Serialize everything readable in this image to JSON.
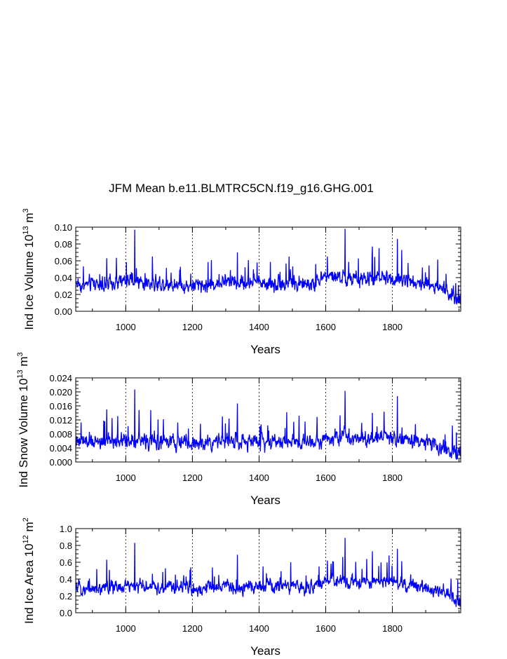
{
  "title": "JFM Mean b.e11.BLMTRC5CN.f19_g16.GHG.001",
  "line_color": "#0000ff",
  "chart_data": [
    {
      "type": "line",
      "title": "JFM Mean b.e11.BLMTRC5CN.f19_g16.GHG.001",
      "xlabel": "Years",
      "ylabel_main": "Ind Ice Volume 10",
      "ylabel_exp": "13",
      "ylabel_unit": " m",
      "ylabel_unit_exp": "3",
      "xlim": [
        850,
        2005
      ],
      "ylim": [
        0.0,
        0.1
      ],
      "yticks": [
        "0.00",
        "0.02",
        "0.04",
        "0.06",
        "0.08",
        "0.10"
      ],
      "xticks": [
        "1000",
        "1200",
        "1400",
        "1600",
        "1800"
      ],
      "grid_x": [
        1000,
        1200,
        1400,
        1600,
        1800
      ],
      "series": [
        {
          "knots": [
            [
              850,
              0.035
            ],
            [
              870,
              0.03
            ],
            [
              900,
              0.034
            ],
            [
              950,
              0.031
            ],
            [
              1000,
              0.036
            ],
            [
              1050,
              0.034
            ],
            [
              1100,
              0.033
            ],
            [
              1150,
              0.032
            ],
            [
              1200,
              0.029
            ],
            [
              1250,
              0.031
            ],
            [
              1300,
              0.036
            ],
            [
              1350,
              0.033
            ],
            [
              1400,
              0.035
            ],
            [
              1450,
              0.033
            ],
            [
              1500,
              0.034
            ],
            [
              1550,
              0.031
            ],
            [
              1600,
              0.042
            ],
            [
              1650,
              0.04
            ],
            [
              1700,
              0.037
            ],
            [
              1750,
              0.039
            ],
            [
              1800,
              0.04
            ],
            [
              1850,
              0.036
            ],
            [
              1900,
              0.033
            ],
            [
              1950,
              0.027
            ],
            [
              1975,
              0.02
            ],
            [
              2005,
              0.012
            ]
          ],
          "noise": 0.0075,
          "min": 0.008,
          "spikes": [
            [
              1027,
              0.097
            ],
            [
              1658,
              0.098
            ],
            [
              1815,
              0.086
            ],
            [
              1760,
              0.075
            ],
            [
              1740,
              0.077
            ],
            [
              1335,
              0.07
            ],
            [
              1490,
              0.065
            ],
            [
              943,
              0.063
            ],
            [
              1605,
              0.065
            ]
          ]
        }
      ]
    },
    {
      "type": "line",
      "xlabel": "Years",
      "ylabel_main": "Ind Snow Volume 10",
      "ylabel_exp": "13",
      "ylabel_unit": " m",
      "ylabel_unit_exp": "3",
      "xlim": [
        850,
        2005
      ],
      "ylim": [
        0.0,
        0.024
      ],
      "yticks": [
        "0.000",
        "0.004",
        "0.008",
        "0.012",
        "0.016",
        "0.020",
        "0.024"
      ],
      "xticks": [
        "1000",
        "1200",
        "1400",
        "1600",
        "1800"
      ],
      "grid_x": [
        1000,
        1200,
        1400,
        1600,
        1800
      ],
      "series": [
        {
          "knots": [
            [
              850,
              0.0055
            ],
            [
              900,
              0.0058
            ],
            [
              950,
              0.006
            ],
            [
              1000,
              0.0063
            ],
            [
              1050,
              0.006
            ],
            [
              1100,
              0.0057
            ],
            [
              1150,
              0.0055
            ],
            [
              1200,
              0.0052
            ],
            [
              1250,
              0.0056
            ],
            [
              1300,
              0.006
            ],
            [
              1350,
              0.0058
            ],
            [
              1400,
              0.006
            ],
            [
              1450,
              0.0058
            ],
            [
              1500,
              0.0062
            ],
            [
              1550,
              0.0058
            ],
            [
              1600,
              0.007
            ],
            [
              1650,
              0.0072
            ],
            [
              1700,
              0.0068
            ],
            [
              1750,
              0.007
            ],
            [
              1800,
              0.0072
            ],
            [
              1850,
              0.0062
            ],
            [
              1900,
              0.0055
            ],
            [
              1950,
              0.0045
            ],
            [
              1975,
              0.0032
            ],
            [
              2005,
              0.002
            ]
          ],
          "noise": 0.0018,
          "min": 0.0008,
          "spikes": [
            [
              1027,
              0.0207
            ],
            [
              1658,
              0.0203
            ],
            [
              1815,
              0.0188
            ],
            [
              1335,
              0.0167
            ],
            [
              943,
              0.015
            ],
            [
              1075,
              0.0148
            ],
            [
              1740,
              0.014
            ],
            [
              1290,
              0.013
            ],
            [
              1520,
              0.0132
            ]
          ]
        }
      ]
    },
    {
      "type": "line",
      "xlabel": "Years",
      "ylabel_main": "Ind Ice Area 10",
      "ylabel_exp": "12",
      "ylabel_unit": " m",
      "ylabel_unit_exp": "2",
      "xlim": [
        850,
        2005
      ],
      "ylim": [
        0.0,
        1.0
      ],
      "yticks": [
        "0.0",
        "0.2",
        "0.4",
        "0.6",
        "0.8",
        "1.0"
      ],
      "xticks": [
        "1000",
        "1200",
        "1400",
        "1600",
        "1800"
      ],
      "grid_x": [
        1000,
        1200,
        1400,
        1600,
        1800
      ],
      "series": [
        {
          "knots": [
            [
              850,
              0.3
            ],
            [
              900,
              0.29
            ],
            [
              950,
              0.3
            ],
            [
              1000,
              0.32
            ],
            [
              1050,
              0.31
            ],
            [
              1100,
              0.3
            ],
            [
              1150,
              0.3
            ],
            [
              1200,
              0.28
            ],
            [
              1250,
              0.29
            ],
            [
              1300,
              0.31
            ],
            [
              1350,
              0.3
            ],
            [
              1400,
              0.32
            ],
            [
              1450,
              0.31
            ],
            [
              1500,
              0.32
            ],
            [
              1550,
              0.3
            ],
            [
              1600,
              0.38
            ],
            [
              1650,
              0.38
            ],
            [
              1700,
              0.36
            ],
            [
              1750,
              0.37
            ],
            [
              1800,
              0.37
            ],
            [
              1850,
              0.33
            ],
            [
              1900,
              0.3
            ],
            [
              1950,
              0.25
            ],
            [
              1975,
              0.2
            ],
            [
              2005,
              0.1
            ]
          ],
          "noise": 0.065,
          "min": 0.06,
          "spikes": [
            [
              1027,
              0.83
            ],
            [
              1658,
              0.89
            ],
            [
              1815,
              0.76
            ],
            [
              1740,
              0.73
            ],
            [
              1335,
              0.69
            ],
            [
              1790,
              0.68
            ],
            [
              943,
              0.63
            ],
            [
              1495,
              0.6
            ],
            [
              1605,
              0.62
            ]
          ]
        }
      ]
    }
  ]
}
